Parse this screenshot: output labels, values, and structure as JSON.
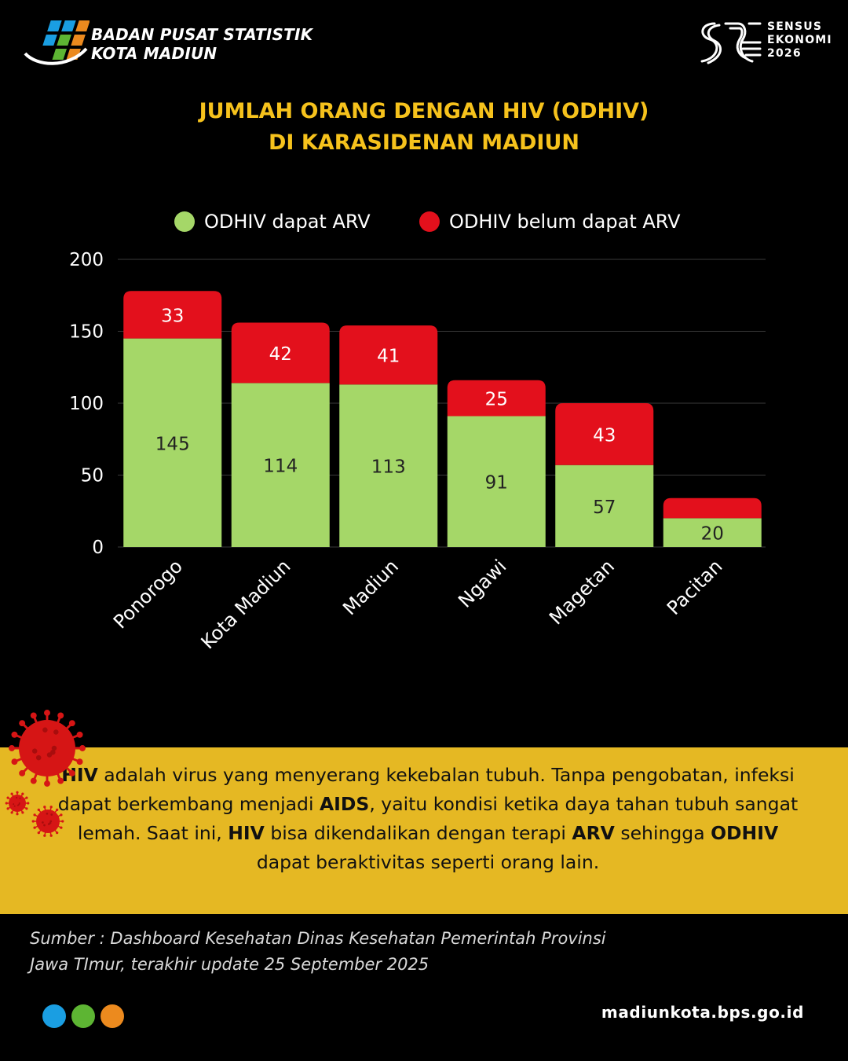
{
  "header": {
    "org_line1": "BADAN PUSAT STATISTIK",
    "org_line2": "KOTA MADIUN",
    "census_line1": "SENSUS",
    "census_line2": "EKONOMI",
    "census_line3": "2026"
  },
  "title_line1": "JUMLAH ORANG DENGAN HIV (ODHIV)",
  "title_line2": "DI KARASIDENAN MADIUN",
  "colors": {
    "accent_yellow": "#f6c21c",
    "series_green": "#a5d768",
    "series_red": "#e3101c",
    "info_bg": "#e5b823"
  },
  "chart_data": {
    "type": "bar",
    "stacked": true,
    "title": "JUMLAH ORANG DENGAN HIV (ODHIV) DI KARASIDENAN MADIUN",
    "categories": [
      "Ponorogo",
      "Kota Madiun",
      "Madiun",
      "Ngawi",
      "Magetan",
      "Pacitan"
    ],
    "series": [
      {
        "name": "ODHIV dapat ARV",
        "color": "#a5d768",
        "values": [
          145,
          114,
          113,
          91,
          57,
          20
        ]
      },
      {
        "name": "ODHIV belum dapat ARV",
        "color": "#e3101c",
        "values": [
          33,
          42,
          41,
          25,
          43,
          14
        ]
      }
    ],
    "ylim": [
      0,
      200
    ],
    "yticks": [
      0,
      50,
      100,
      150,
      200
    ],
    "grid": true,
    "legend_position": "top",
    "data_labels": [
      [
        "145",
        "114",
        "113",
        "91",
        "57",
        "20"
      ],
      [
        "33",
        "42",
        "41",
        "25",
        "43",
        ""
      ]
    ]
  },
  "info": {
    "hiv1": "HIV",
    "t1": " adalah virus yang menyerang kekebalan tubuh. Tanpa pengobatan, infeksi dapat berkembang menjadi ",
    "aids": "AIDS",
    "t2": ", yaitu kondisi ketika daya tahan tubuh sangat lemah. Saat ini, ",
    "hiv2": "HIV",
    "t3": " bisa dikendalikan dengan terapi ",
    "arv": "ARV",
    "t4": " sehingga ",
    "odhiv": "ODHIV",
    "t5": " dapat beraktivitas seperti orang lain."
  },
  "source": {
    "line1": "Sumber : Dashboard Kesehatan Dinas Kesehatan Pemerintah Provinsi",
    "line2": "Jawa TImur, terakhir update 25 September 2025"
  },
  "footer": {
    "website": "madiunkota.bps.go.id",
    "dot_colors": [
      "#1a9ee2",
      "#5db533",
      "#ec8a1e"
    ]
  }
}
